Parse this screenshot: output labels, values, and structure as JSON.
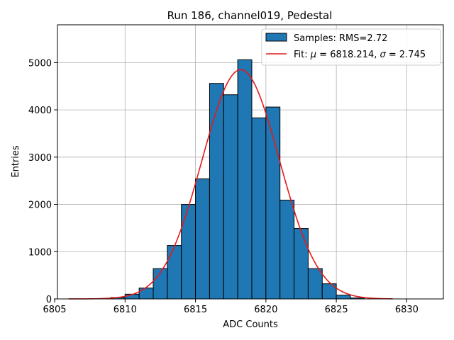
{
  "chart_data": {
    "type": "bar",
    "title": "Run 186, channel019, Pedestal",
    "xlabel": "ADC Counts",
    "ylabel": "Entries",
    "xlim": [
      6805.2,
      6832.6
    ],
    "ylim": [
      0,
      5800
    ],
    "xticks": [
      6805,
      6810,
      6815,
      6820,
      6825,
      6830
    ],
    "yticks": [
      0,
      1000,
      2000,
      3000,
      4000,
      5000
    ],
    "grid": true,
    "legend_position": "top-right",
    "bin_width": 1,
    "bins": [
      {
        "x": 6809,
        "value": 30
      },
      {
        "x": 6810,
        "value": 100
      },
      {
        "x": 6811,
        "value": 230
      },
      {
        "x": 6812,
        "value": 640
      },
      {
        "x": 6813,
        "value": 1130
      },
      {
        "x": 6814,
        "value": 2000
      },
      {
        "x": 6815,
        "value": 2540
      },
      {
        "x": 6816,
        "value": 4560
      },
      {
        "x": 6817,
        "value": 4320
      },
      {
        "x": 6818,
        "value": 5060
      },
      {
        "x": 6819,
        "value": 3830
      },
      {
        "x": 6820,
        "value": 4060
      },
      {
        "x": 6821,
        "value": 2090
      },
      {
        "x": 6822,
        "value": 1490
      },
      {
        "x": 6823,
        "value": 640
      },
      {
        "x": 6824,
        "value": 320
      },
      {
        "x": 6825,
        "value": 80
      },
      {
        "x": 6826,
        "value": 20
      }
    ],
    "fit": {
      "mu": 6818.214,
      "sigma": 2.745,
      "amplitude": 4850,
      "x_range": [
        6806,
        6829
      ]
    },
    "series": [
      {
        "name": "Samples: RMS=2.72",
        "kind": "histogram",
        "color": "#1f77b4"
      },
      {
        "name_prefix": "Fit: ",
        "mu_symbol": "μ",
        "mu_text": " = 6818.214, ",
        "sigma_symbol": "σ",
        "sigma_text": " = 2.745",
        "kind": "line",
        "color": "#e31a1c"
      }
    ]
  }
}
